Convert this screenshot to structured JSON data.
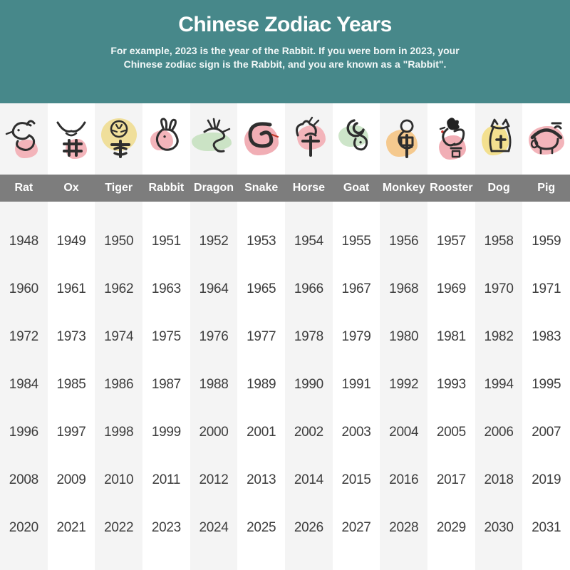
{
  "header": {
    "title": "Chinese Zodiac Years",
    "subtitle_lines": [
      "For example, 2023 is the year of the Rabbit. If you were born in 2023, your",
      "Chinese zodiac sign is the Rabbit, and you are known as a \"Rabbit\"."
    ]
  },
  "chart_data": {
    "type": "table",
    "title": "Chinese Zodiac Years",
    "columns": [
      "Rat",
      "Ox",
      "Tiger",
      "Rabbit",
      "Dragon",
      "Snake",
      "Horse",
      "Goat",
      "Monkey",
      "Rooster",
      "Dog",
      "Pig"
    ],
    "zodiac_characters": [
      "子",
      "丑",
      "寅",
      "卯",
      "辰",
      "巳",
      "午",
      "未",
      "申",
      "酉",
      "戌",
      "亥"
    ],
    "rows": [
      [
        1948,
        1949,
        1950,
        1951,
        1952,
        1953,
        1954,
        1955,
        1956,
        1957,
        1958,
        1959
      ],
      [
        1960,
        1961,
        1962,
        1963,
        1964,
        1965,
        1966,
        1967,
        1968,
        1969,
        1970,
        1971
      ],
      [
        1972,
        1973,
        1974,
        1975,
        1976,
        1977,
        1978,
        1979,
        1980,
        1981,
        1982,
        1983
      ],
      [
        1984,
        1985,
        1986,
        1987,
        1988,
        1989,
        1990,
        1991,
        1992,
        1993,
        1994,
        1995
      ],
      [
        1996,
        1997,
        1998,
        1999,
        2000,
        2001,
        2002,
        2003,
        2004,
        2005,
        2006,
        2007
      ],
      [
        2008,
        2009,
        2010,
        2011,
        2012,
        2013,
        2014,
        2015,
        2016,
        2017,
        2018,
        2019
      ],
      [
        2020,
        2021,
        2022,
        2023,
        2024,
        2025,
        2026,
        2027,
        2028,
        2029,
        2030,
        2031
      ]
    ]
  },
  "icons": [
    {
      "name": "rat",
      "char": "子",
      "blob_color": "#f3b4ba"
    },
    {
      "name": "ox",
      "char": "丑",
      "blob_color": "#f3b4ba"
    },
    {
      "name": "tiger",
      "char": "寅",
      "blob_color": "#f0df9b"
    },
    {
      "name": "rabbit",
      "char": "卯",
      "blob_color": "#f3b4ba"
    },
    {
      "name": "dragon",
      "char": "辰",
      "blob_color": "#cbe3c5"
    },
    {
      "name": "snake",
      "char": "巳",
      "blob_color": "#f1aeb5"
    },
    {
      "name": "horse",
      "char": "午",
      "blob_color": "#f3b4ba"
    },
    {
      "name": "goat",
      "char": "未",
      "blob_color": "#cde5c9"
    },
    {
      "name": "monkey",
      "char": "申",
      "blob_color": "#f5c98e"
    },
    {
      "name": "rooster",
      "char": "酉",
      "blob_color": "#f1aeb5"
    },
    {
      "name": "dog",
      "char": "戌",
      "blob_color": "#f3e08f"
    },
    {
      "name": "pig",
      "char": "亥",
      "blob_color": "#f3b4ba"
    }
  ],
  "colors": {
    "header_bg": "#47888a",
    "label_band_bg": "#7d7d7d",
    "stripe_bg": "#f4f4f4",
    "year_text": "#3d3d3d",
    "ink": "#2e2e2e"
  }
}
